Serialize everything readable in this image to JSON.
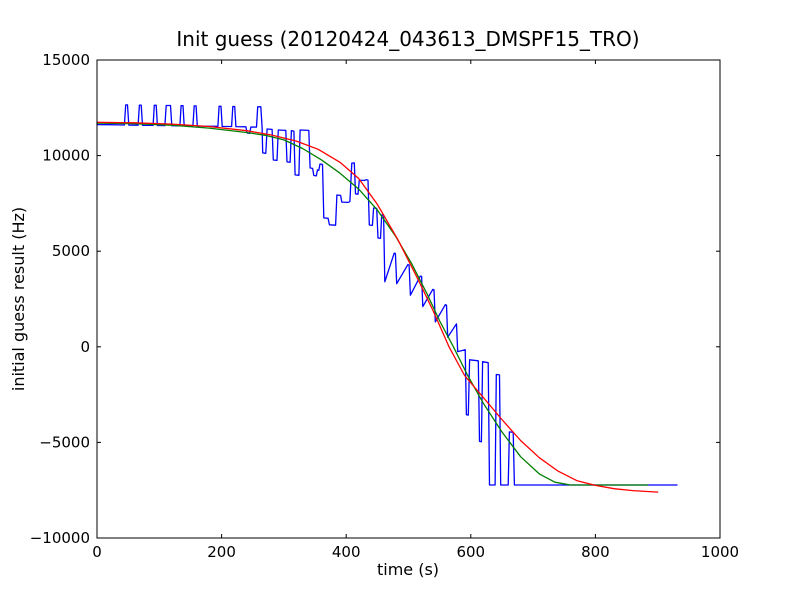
{
  "figure": {
    "background": "#ffffff",
    "frame_color": "#000000"
  },
  "chart_data": {
    "type": "line",
    "title": "Init guess (20120424_043613_DMSPF15_TRO)",
    "xlabel": "time (s)",
    "ylabel": "initial guess result (Hz)",
    "xlim": [
      0,
      1000
    ],
    "ylim": [
      -10000,
      15000
    ],
    "xticks": [
      0,
      200,
      400,
      600,
      800,
      1000
    ],
    "yticks": [
      -10000,
      -5000,
      0,
      5000,
      10000,
      15000
    ],
    "grid": false,
    "legend": false,
    "axis_color": "#000000",
    "series": [
      {
        "name": "blue-noisy-data",
        "color": "#0000ff",
        "width": 1.3,
        "points": [
          [
            0,
            11620
          ],
          [
            20,
            11615
          ],
          [
            44,
            11600
          ],
          [
            46,
            12650
          ],
          [
            49,
            12650
          ],
          [
            51,
            11595
          ],
          [
            66,
            11590
          ],
          [
            68,
            12640
          ],
          [
            71,
            12640
          ],
          [
            73,
            11585
          ],
          [
            90,
            11580
          ],
          [
            92,
            12630
          ],
          [
            95,
            12630
          ],
          [
            97,
            11575
          ],
          [
            109,
            11570
          ],
          [
            111,
            12620
          ],
          [
            118,
            12620
          ],
          [
            120,
            11565
          ],
          [
            133,
            11560
          ],
          [
            135,
            12610
          ],
          [
            138,
            12610
          ],
          [
            140,
            11555
          ],
          [
            154,
            11550
          ],
          [
            156,
            12600
          ],
          [
            159,
            12600
          ],
          [
            161,
            11545
          ],
          [
            194,
            11530
          ],
          [
            196,
            12580
          ],
          [
            199,
            12580
          ],
          [
            201,
            11525
          ],
          [
            216,
            11520
          ],
          [
            218,
            12570
          ],
          [
            221,
            12570
          ],
          [
            223,
            11515
          ],
          [
            239,
            11505
          ],
          [
            241,
            11180
          ],
          [
            245,
            11160
          ],
          [
            247,
            11495
          ],
          [
            256,
            11490
          ],
          [
            258,
            12550
          ],
          [
            263,
            12550
          ],
          [
            265,
            11485
          ],
          [
            266,
            10140
          ],
          [
            271,
            10120
          ],
          [
            273,
            11390
          ],
          [
            281,
            11370
          ],
          [
            283,
            9770
          ],
          [
            289,
            9750
          ],
          [
            291,
            11340
          ],
          [
            303,
            11320
          ],
          [
            305,
            9670
          ],
          [
            310,
            9650
          ],
          [
            312,
            11300
          ],
          [
            316,
            11280
          ],
          [
            318,
            8990
          ],
          [
            324,
            8970
          ],
          [
            326,
            11340
          ],
          [
            340,
            11320
          ],
          [
            342,
            9350
          ],
          [
            346,
            9330
          ],
          [
            348,
            8960
          ],
          [
            352,
            8940
          ],
          [
            354,
            9250
          ],
          [
            356,
            9230
          ],
          [
            358,
            9560
          ],
          [
            362,
            9540
          ],
          [
            364,
            6740
          ],
          [
            371,
            6720
          ],
          [
            373,
            6380
          ],
          [
            383,
            6360
          ],
          [
            385,
            7940
          ],
          [
            391,
            7920
          ],
          [
            393,
            7570
          ],
          [
            403,
            7550
          ],
          [
            406,
            7600
          ],
          [
            409,
            9600
          ],
          [
            413,
            9620
          ],
          [
            415,
            8000
          ],
          [
            419,
            7980
          ],
          [
            421,
            8720
          ],
          [
            429,
            8700
          ],
          [
            432,
            8740
          ],
          [
            435,
            8720
          ],
          [
            437,
            6370
          ],
          [
            442,
            6350
          ],
          [
            444,
            7260
          ],
          [
            449,
            7240
          ],
          [
            451,
            5690
          ],
          [
            455,
            5670
          ],
          [
            457,
            6900
          ],
          [
            460,
            6880
          ],
          [
            462,
            3400
          ],
          [
            477,
            4900
          ],
          [
            479,
            4880
          ],
          [
            481,
            3300
          ],
          [
            499,
            4300
          ],
          [
            501,
            4280
          ],
          [
            503,
            2700
          ],
          [
            519,
            3700
          ],
          [
            521,
            3680
          ],
          [
            523,
            2100
          ],
          [
            539,
            3000
          ],
          [
            541,
            2980
          ],
          [
            543,
            1300
          ],
          [
            559,
            2200
          ],
          [
            561,
            2180
          ],
          [
            563,
            500
          ],
          [
            577,
            1200
          ],
          [
            579,
            -250
          ],
          [
            591,
            -150
          ],
          [
            593,
            -3550
          ],
          [
            596,
            -3570
          ],
          [
            598,
            -680
          ],
          [
            612,
            -730
          ],
          [
            614,
            -4950
          ],
          [
            617,
            -4970
          ],
          [
            619,
            -780
          ],
          [
            628,
            -830
          ],
          [
            630,
            -7230
          ],
          [
            639,
            -7230
          ],
          [
            641,
            -1450
          ],
          [
            646,
            -1470
          ],
          [
            648,
            -7230
          ],
          [
            660,
            -7230
          ],
          [
            662,
            -4450
          ],
          [
            668,
            -4470
          ],
          [
            670,
            -7230
          ],
          [
            931,
            -7230
          ]
        ]
      },
      {
        "name": "green-smoothed-curve",
        "color": "#008000",
        "width": 1.3,
        "points": [
          [
            0,
            11700
          ],
          [
            60,
            11670
          ],
          [
            120,
            11590
          ],
          [
            180,
            11440
          ],
          [
            240,
            11210
          ],
          [
            270,
            11060
          ],
          [
            300,
            10820
          ],
          [
            330,
            10370
          ],
          [
            360,
            9780
          ],
          [
            390,
            9080
          ],
          [
            420,
            8250
          ],
          [
            450,
            7150
          ],
          [
            480,
            5750
          ],
          [
            505,
            4350
          ],
          [
            530,
            2750
          ],
          [
            550,
            1350
          ],
          [
            572,
            0
          ],
          [
            595,
            -1500
          ],
          [
            620,
            -2950
          ],
          [
            650,
            -4450
          ],
          [
            680,
            -5750
          ],
          [
            710,
            -6650
          ],
          [
            735,
            -7080
          ],
          [
            760,
            -7230
          ],
          [
            884,
            -7230
          ]
        ]
      },
      {
        "name": "red-fit-curve",
        "color": "#ff0000",
        "width": 1.3,
        "points": [
          [
            0,
            11740
          ],
          [
            60,
            11715
          ],
          [
            120,
            11650
          ],
          [
            180,
            11520
          ],
          [
            240,
            11300
          ],
          [
            280,
            11080
          ],
          [
            320,
            10760
          ],
          [
            355,
            10330
          ],
          [
            390,
            9650
          ],
          [
            420,
            8800
          ],
          [
            450,
            7450
          ],
          [
            483,
            5600
          ],
          [
            515,
            3550
          ],
          [
            540,
            1850
          ],
          [
            565,
            0
          ],
          [
            590,
            -1500
          ],
          [
            620,
            -2650
          ],
          [
            650,
            -3800
          ],
          [
            680,
            -4900
          ],
          [
            710,
            -5800
          ],
          [
            740,
            -6500
          ],
          [
            770,
            -7000
          ],
          [
            800,
            -7250
          ],
          [
            830,
            -7420
          ],
          [
            860,
            -7520
          ],
          [
            900,
            -7600
          ]
        ]
      }
    ]
  }
}
